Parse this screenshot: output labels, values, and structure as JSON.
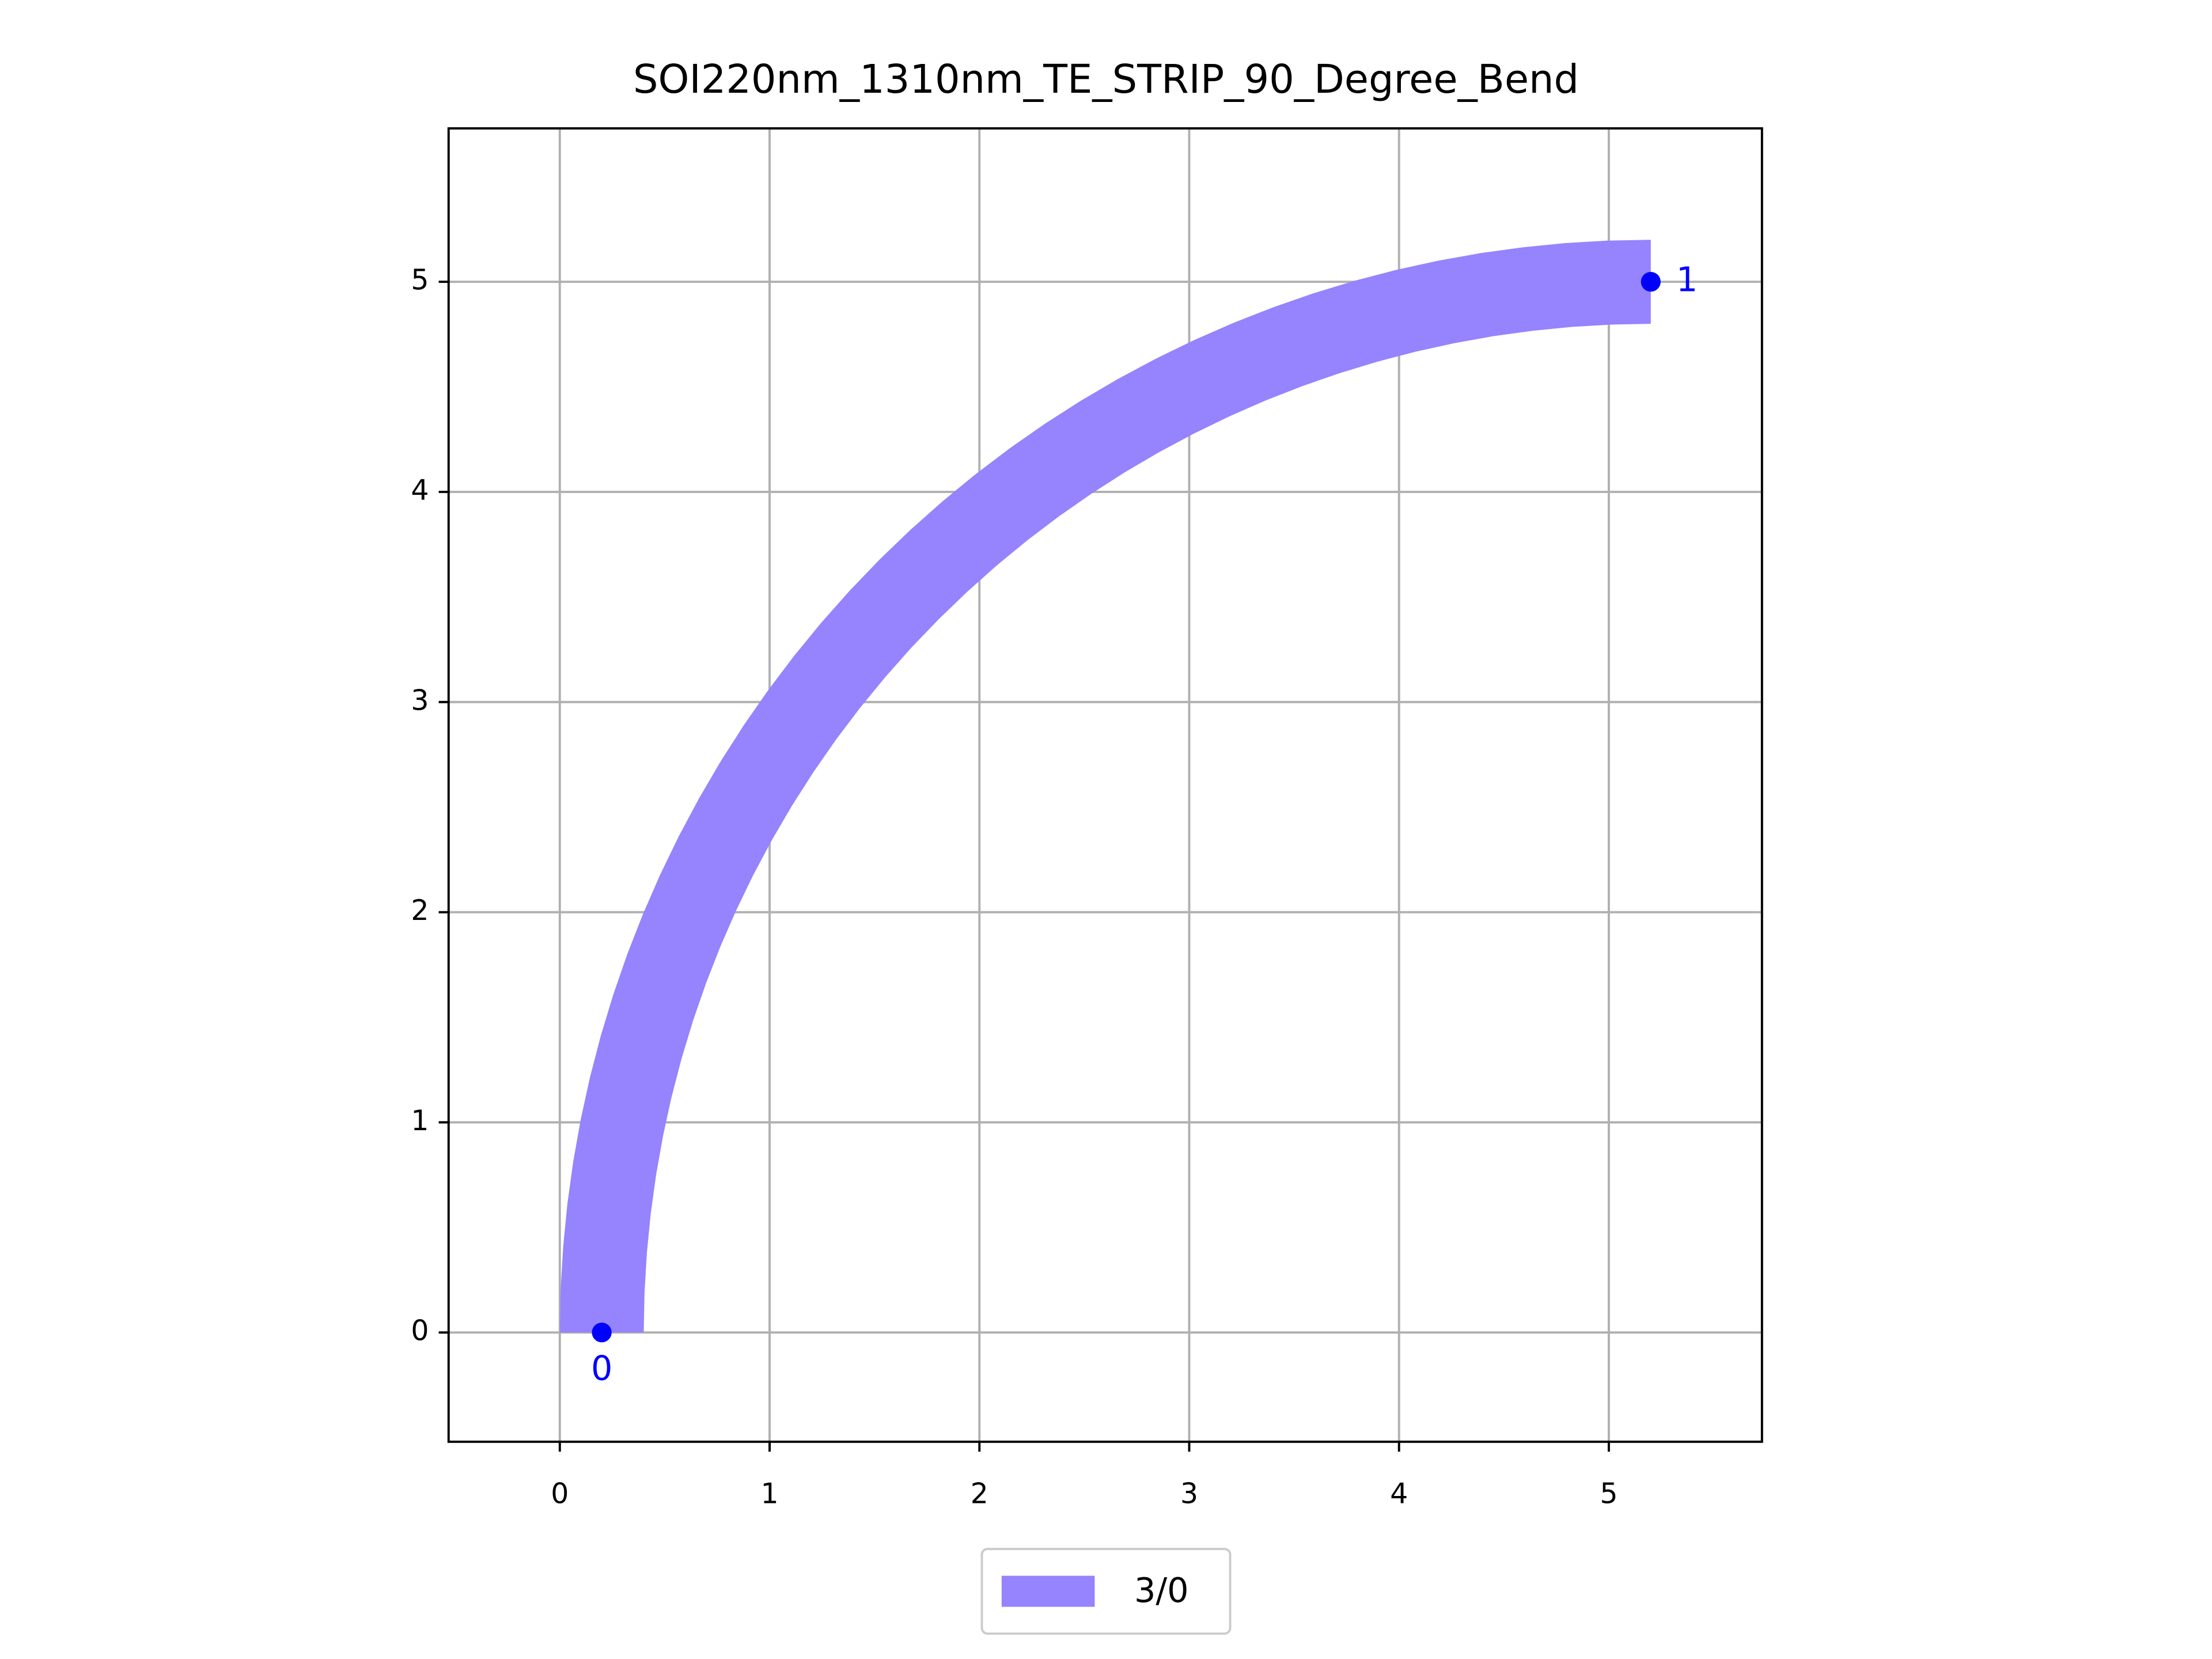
{
  "chart_data": {
    "type": "bend",
    "title": "SOI220nm_1310nm_TE_STRIP_90_Degree_Bend",
    "series": [
      {
        "name": "3/0",
        "color": "#9683fe",
        "center": [
          5.2,
          0
        ],
        "radius": 5,
        "width": 0.4,
        "angles": [
          180,
          90
        ]
      }
    ],
    "ports": [
      {
        "label": "0",
        "x": 0.2,
        "y": 0
      },
      {
        "label": "1",
        "x": 5.2,
        "y": 5
      }
    ],
    "port_color": "#0000ff",
    "xlim": [
      -0.53,
      5.73
    ],
    "ylim": [
      -0.52,
      5.73
    ],
    "xticks": [
      0,
      1,
      2,
      3,
      4,
      5
    ],
    "yticks": [
      0,
      1,
      2,
      3,
      4,
      5
    ],
    "grid": true,
    "legend": "bottom"
  }
}
